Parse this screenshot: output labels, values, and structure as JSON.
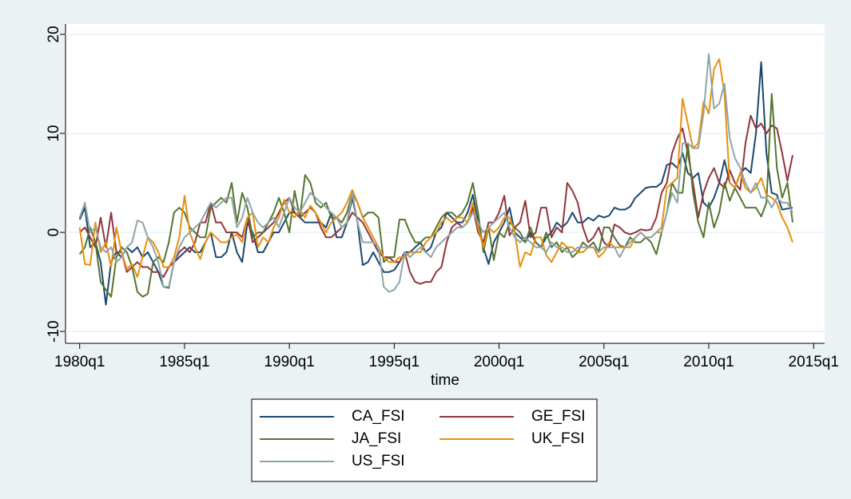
{
  "chart_data": {
    "type": "line",
    "x_label": "time",
    "x": [
      80,
      81,
      82,
      83,
      84,
      85,
      86,
      87,
      88,
      89,
      90,
      91,
      92,
      93,
      94,
      95,
      96,
      97,
      98,
      99,
      100,
      101,
      102,
      103,
      104,
      105,
      106,
      107,
      108,
      109,
      110,
      111,
      112,
      113,
      114,
      115,
      116,
      117,
      118,
      119,
      120,
      121,
      122,
      123,
      124,
      125,
      126,
      127,
      128,
      129,
      130,
      131,
      132,
      133,
      134,
      135,
      136,
      137,
      138,
      139,
      140,
      141,
      142,
      143,
      144,
      145,
      146,
      147,
      148,
      149,
      150,
      151,
      152,
      153,
      154,
      155,
      156,
      157,
      158,
      159,
      160,
      161,
      162,
      163,
      164,
      165,
      166,
      167,
      168,
      169,
      170,
      171,
      172,
      173,
      174,
      175,
      176,
      177,
      178,
      179,
      180,
      181,
      182,
      183,
      184,
      185,
      186,
      187,
      188,
      189,
      190,
      191,
      192,
      193,
      194,
      195,
      196,
      197,
      198,
      199,
      200,
      201,
      202,
      203,
      204,
      205,
      206,
      207,
      208,
      209,
      210,
      211,
      212,
      213,
      214,
      215,
      216
    ],
    "xlim": [
      77.3,
      222.1
    ],
    "xticks": [
      {
        "value": 80,
        "label": "1980q1"
      },
      {
        "value": 100,
        "label": "1985q1"
      },
      {
        "value": 120,
        "label": "1990q1"
      },
      {
        "value": 140,
        "label": "1995q1"
      },
      {
        "value": 160,
        "label": "2000q1"
      },
      {
        "value": 180,
        "label": "2005q1"
      },
      {
        "value": 200,
        "label": "2010q1"
      },
      {
        "value": 220,
        "label": "2015q1"
      }
    ],
    "ylim": [
      -11.2,
      21.05
    ],
    "yticks": [
      20,
      10,
      0,
      -10
    ],
    "grid": true,
    "legend_position": "bottom",
    "series": [
      {
        "name": "CA_FSI",
        "color": "#1a476f",
        "values": [
          1.3,
          2.5,
          -1.5,
          -1,
          -3,
          -7.3,
          -3,
          -2,
          -2.5,
          -1.5,
          -2,
          -1.5,
          -2.5,
          -2,
          -3,
          -4,
          -5.5,
          -5.6,
          -3,
          -2.5,
          -2,
          -1.5,
          -2,
          -2,
          -1,
          0,
          -2.5,
          -2.5,
          -2,
          0,
          -2,
          -3,
          1,
          0,
          -2,
          -2,
          -1,
          0,
          0,
          1,
          2,
          2,
          1.5,
          1,
          1,
          1,
          1,
          0.5,
          2,
          -0.5,
          -0.5,
          1,
          3.5,
          1,
          -3.3,
          -3,
          -2,
          -3,
          -4,
          -4,
          -3.8,
          -3,
          -2,
          -2,
          -1.5,
          -1,
          -2,
          -1.5,
          0,
          0.5,
          2,
          1.5,
          1,
          1,
          2,
          3.8,
          1,
          -1.5,
          -3.2,
          -1,
          0,
          1,
          2.5,
          0,
          -0.5,
          -1,
          0,
          -1,
          -1.5,
          -0.5,
          0,
          1,
          0.5,
          1,
          2,
          1,
          1,
          1.5,
          1.2,
          1.7,
          1.5,
          1.7,
          2.5,
          2.3,
          2.3,
          2.6,
          3.5,
          4,
          4.5,
          4.6,
          4.6,
          5,
          6.8,
          7,
          6.5,
          8,
          6,
          5.5,
          6,
          3,
          2.5,
          3.5,
          5,
          7.3,
          5,
          4.5,
          6,
          6.5,
          6,
          10,
          17.2,
          8,
          4,
          3.8,
          2.3,
          2.4,
          2.5
        ]
      },
      {
        "name": "GE_FSI",
        "color": "#90353b",
        "values": [
          0,
          0.5,
          -0.5,
          -1.5,
          1.5,
          -1.5,
          2,
          -2,
          -2,
          -4,
          -3.5,
          -3,
          -3.5,
          -3.5,
          -4,
          -4,
          -4.5,
          -3.5,
          -3,
          -2,
          -1.5,
          -2,
          -1,
          1,
          1,
          3,
          1,
          1,
          0,
          0,
          0,
          -0.5,
          1.5,
          -1,
          -0.5,
          0,
          0.5,
          1,
          2,
          3,
          3.5,
          2,
          1.5,
          2,
          2.5,
          2,
          0.5,
          -0.5,
          -0.5,
          0,
          0.5,
          1,
          2,
          1.5,
          1,
          0,
          -1,
          -2,
          -2.5,
          -2.5,
          -3,
          -3,
          -2,
          -4,
          -5,
          -5.2,
          -5,
          -5,
          -4,
          -3.5,
          -1,
          0.5,
          1,
          0.5,
          1,
          2.5,
          0,
          -1,
          1,
          1,
          2,
          3.7,
          -0.3,
          0.5,
          1,
          3.2,
          -0.5,
          0,
          2.5,
          2.5,
          -0.5,
          0.5,
          0,
          5,
          4.2,
          3,
          0.5,
          -1,
          -0.5,
          0.5,
          -1,
          -1.5,
          0.8,
          0.5,
          0,
          -0.2,
          0,
          0.3,
          0.2,
          0.3,
          1.5,
          4,
          5,
          8,
          9.5,
          10.5,
          8,
          5,
          1.5,
          4,
          5.5,
          6.5,
          5,
          4.5,
          6.3,
          5,
          4.3,
          9,
          11.8,
          10.5,
          11,
          10,
          10.8,
          10.5,
          8,
          5.2,
          7.8
        ]
      },
      {
        "name": "JA_FSI",
        "color": "#55752f",
        "values": [
          -2.2,
          -1.5,
          0.5,
          -1,
          -5,
          -5.8,
          -6.5,
          -2.5,
          -1.5,
          -2,
          -3.5,
          -6,
          -6.5,
          -6.2,
          -3,
          -2.5,
          -3,
          -1,
          2,
          2.5,
          2,
          0.5,
          0,
          -0.5,
          -0.5,
          2.5,
          3,
          3.5,
          3,
          5,
          1,
          4,
          2.5,
          -0.5,
          0,
          0,
          1,
          2,
          3.5,
          2,
          0,
          4.2,
          1.5,
          5.8,
          5,
          3,
          2.5,
          3,
          1.5,
          1.5,
          1,
          2,
          4,
          3,
          1.5,
          2,
          2,
          1.5,
          -3,
          -2.5,
          -2.5,
          1.3,
          1.3,
          0,
          -1,
          -1,
          -0.5,
          -0.5,
          0.5,
          1.5,
          2,
          2,
          1.5,
          2,
          3,
          5,
          2,
          -2,
          0.5,
          -2.8,
          0,
          -0.5,
          1,
          0.5,
          0,
          -1,
          0.5,
          -1,
          -1.5,
          0,
          -1.5,
          -1,
          -2,
          -1.5,
          -2.5,
          -2,
          -1,
          -1.5,
          -1,
          -2,
          0.5,
          0.5,
          -0.5,
          -1.3,
          -1.5,
          -0.5,
          -1,
          -1,
          -0.5,
          -1,
          -2.2,
          0,
          2,
          5,
          4,
          4,
          9,
          4,
          1,
          -0.5,
          3,
          0.5,
          2,
          5,
          3.2,
          4.5,
          3.5,
          2.5,
          2.5,
          2.5,
          1.6,
          3,
          14,
          6.5,
          3.5,
          5,
          1
        ]
      },
      {
        "name": "UK_FSI",
        "color": "#e8900e",
        "values": [
          0.5,
          -3.2,
          -3.3,
          1,
          -2,
          -1,
          -3.5,
          0.5,
          -2,
          -3.7,
          -3.2,
          -4.5,
          -2.5,
          -0.5,
          -1,
          -2,
          -3.5,
          -3.5,
          -2.5,
          -0.5,
          3.7,
          0,
          -1.5,
          -2.7,
          -1,
          0,
          -0.5,
          -1,
          -1,
          -0.5,
          -0.2,
          -1,
          1.5,
          2,
          -1.5,
          -0.5,
          -1,
          0.5,
          1.5,
          3.3,
          2,
          1.5,
          2.3,
          1.5,
          2.7,
          2,
          1,
          0,
          1,
          1.5,
          2,
          3,
          4.3,
          3,
          1.5,
          0.5,
          -0.5,
          -1.5,
          -2.5,
          -3,
          -3,
          -2.5,
          -2.5,
          -2,
          -2,
          -2,
          -1,
          -0.5,
          0,
          1,
          1.5,
          1,
          1.5,
          1.5,
          1,
          3,
          0.5,
          -1.5,
          0.5,
          0,
          0.5,
          1.5,
          1.5,
          0,
          -3.5,
          -2,
          -2.3,
          -0.5,
          -0.5,
          -2.3,
          -3,
          -2,
          -1,
          -1.5,
          -1.5,
          -2,
          -2,
          -1.5,
          -1.5,
          -2.5,
          -2,
          -1,
          -1.5,
          -1.5,
          -1.5,
          -1.5,
          -0.5,
          0,
          -0.5,
          -0.5,
          0,
          0.5,
          4.5,
          5,
          5.5,
          13.5,
          11,
          8.5,
          9,
          13.2,
          12,
          16.5,
          17.5,
          14,
          5,
          4.5,
          6,
          4.5,
          4,
          4.5,
          5.5,
          3.8,
          3.5,
          3,
          1.5,
          0.5,
          -1
        ]
      },
      {
        "name": "US_FSI",
        "color": "#8ea5a8",
        "values": [
          1.5,
          3,
          0,
          0.5,
          -1.5,
          -2,
          -1.5,
          -3,
          -2.5,
          -1.5,
          -1,
          1.2,
          1,
          -0.5,
          -1.5,
          -3,
          -5.5,
          -5.5,
          -3,
          -1.5,
          -0.5,
          0,
          0.5,
          1,
          2,
          3,
          2.5,
          3,
          3.5,
          3.5,
          0.5,
          1.5,
          3.5,
          2,
          1,
          0.5,
          1,
          1.5,
          0.5,
          2,
          3.5,
          2.5,
          2,
          3,
          4,
          3.5,
          3,
          2.5,
          2,
          1.5,
          0.5,
          1,
          4,
          1,
          -1,
          -1,
          -1,
          -1.5,
          -5.5,
          -6,
          -5.8,
          -5,
          -2,
          -2.5,
          -2,
          -1.5,
          -2,
          -2.5,
          -1.5,
          -1,
          -0.5,
          0,
          0.5,
          0.5,
          1,
          2,
          1,
          0,
          0.5,
          1,
          1.5,
          2,
          0.5,
          -0.5,
          -1,
          -0.5,
          -1,
          -1.5,
          -1.5,
          -2,
          -1,
          -1.5,
          -1.5,
          -2,
          -2,
          -1.5,
          -1.5,
          -1.5,
          -1.5,
          -2,
          -1.5,
          -1.5,
          -1.5,
          -2.5,
          -1.5,
          -1,
          -0.5,
          0,
          -0.5,
          -0.5,
          0,
          0,
          2,
          4,
          3,
          9,
          9,
          8.5,
          8.5,
          12,
          18,
          12.5,
          13,
          15,
          9.5,
          7.5,
          6.5,
          5,
          4,
          5,
          3.5,
          3.5,
          2.5,
          3.5,
          3,
          3,
          2
        ]
      }
    ]
  }
}
